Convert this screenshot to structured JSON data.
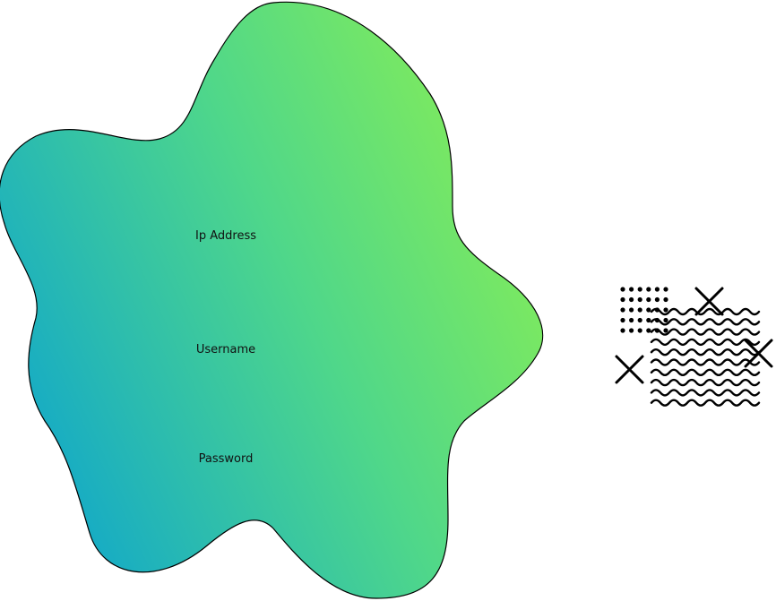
{
  "login_form": {
    "ip_label": "Ip Address",
    "username_label": "Username",
    "password_label": "Password"
  },
  "colors": {
    "gradient_start": "#12acc8",
    "gradient_end": "#86ee58",
    "outline": "#000000",
    "decoration": "#000000"
  },
  "decoration": {
    "icons": [
      "dot-grid-icon",
      "wave-lines-icon",
      "cross-icon"
    ]
  }
}
